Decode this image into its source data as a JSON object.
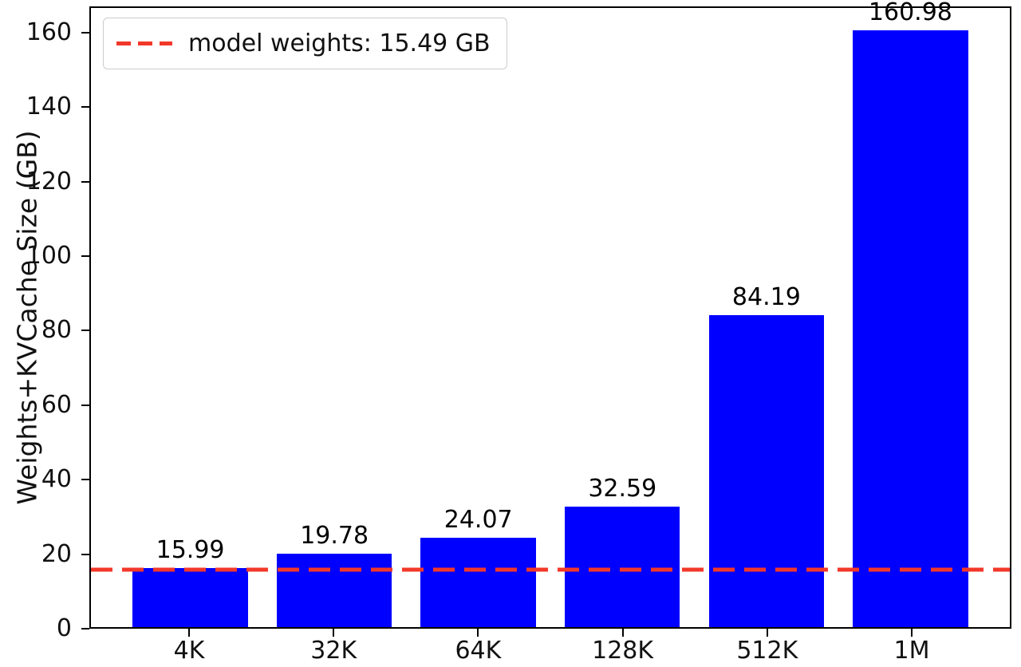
{
  "chart_data": {
    "type": "bar",
    "title": "",
    "xlabel": "",
    "ylabel": "Weights+KVCache Size (GB)",
    "categories": [
      "4K",
      "32K",
      "64K",
      "128K",
      "512K",
      "1M"
    ],
    "values": [
      15.99,
      19.78,
      24.07,
      32.59,
      84.19,
      160.98
    ],
    "bar_value_labels": [
      "15.99",
      "19.78",
      "24.07",
      "32.59",
      "84.19",
      "160.98"
    ],
    "yticks": [
      0,
      20,
      40,
      60,
      80,
      100,
      120,
      140,
      160
    ],
    "ylim": [
      0,
      167
    ],
    "grid": false,
    "bar_color": "#0000ff",
    "axis_color": "#000000",
    "legend": {
      "position": "upper left",
      "entries": [
        {
          "label": "model weights: 15.49 GB",
          "color": "#f2382a",
          "style": "dashed"
        }
      ]
    },
    "reference_line": {
      "value": 15.49,
      "color": "#f2382a",
      "style": "dashed"
    }
  }
}
